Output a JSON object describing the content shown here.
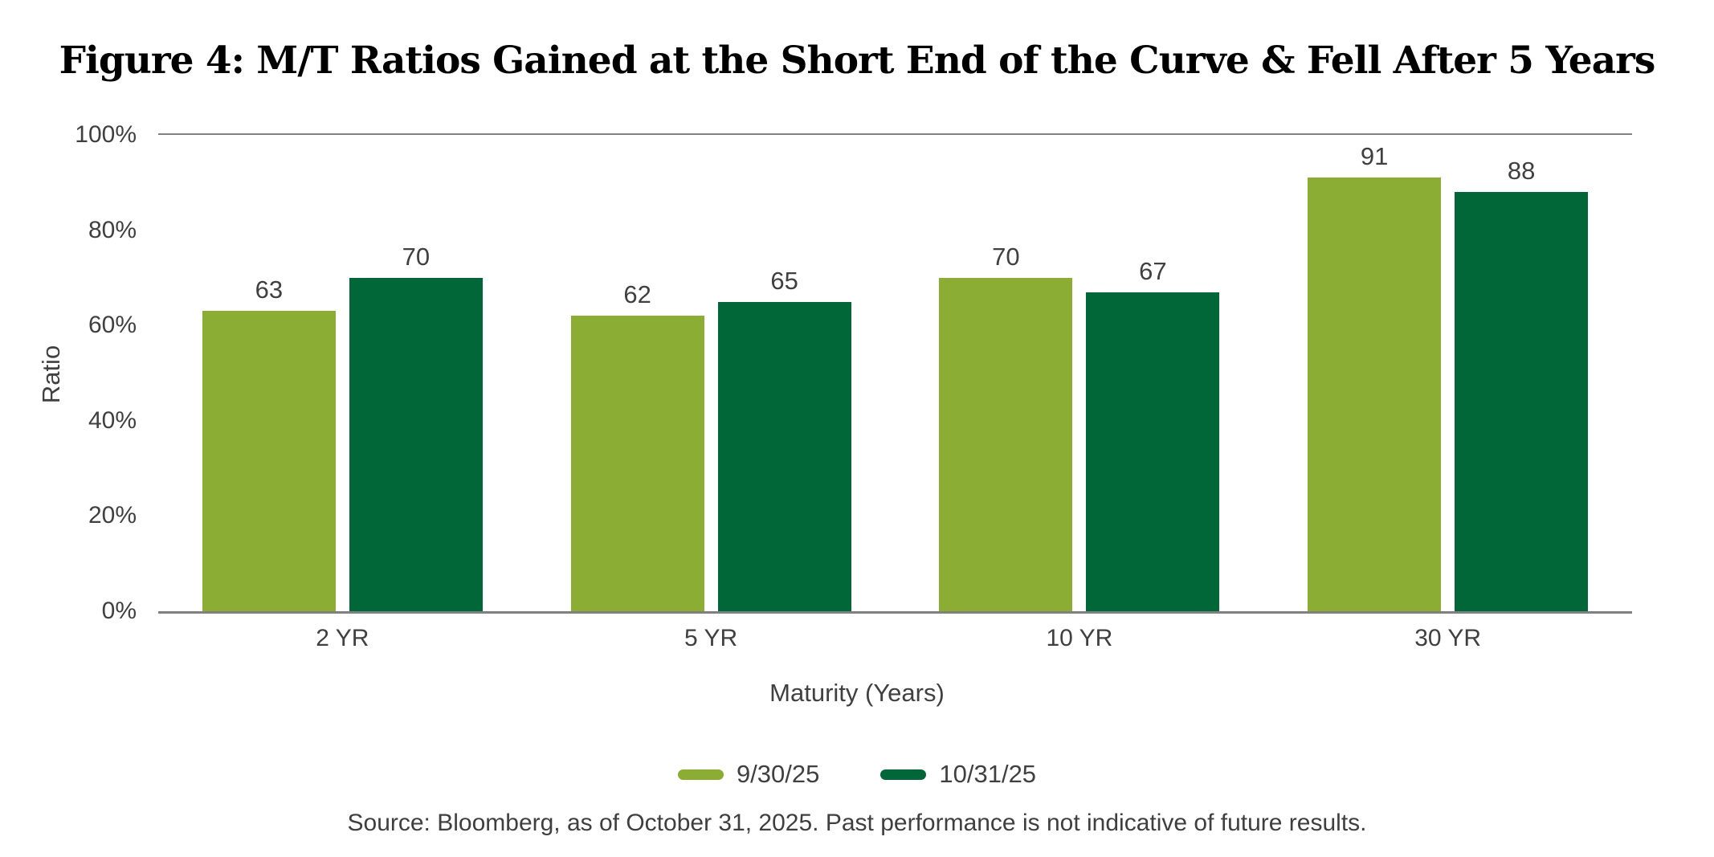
{
  "figure": {
    "title": "Figure 4: M/T Ratios Gained at the Short End of the Curve & Fell After 5 Years",
    "source_note": "Source: Bloomberg, as of October 31, 2025. Past performance is not indicative of future results."
  },
  "colors": {
    "series1": "#8BAD34",
    "series2": "#016638",
    "axis_line": "#808080",
    "label_text": "#404040",
    "title_text": "#000000"
  },
  "chart_data": {
    "type": "bar",
    "title": "Figure 4: M/T Ratios Gained at the Short End of the Curve & Fell After 5 Years",
    "categories": [
      "2 YR",
      "5 YR",
      "10 YR",
      "30 YR"
    ],
    "series": [
      {
        "name": "9/30/25",
        "color": "#8BAD34",
        "values": [
          63,
          62,
          70,
          91
        ]
      },
      {
        "name": "10/31/25",
        "color": "#016638",
        "values": [
          70,
          65,
          67,
          88
        ]
      }
    ],
    "xlabel": "Maturity (Years)",
    "ylabel": "Ratio",
    "ylim": [
      0,
      100
    ],
    "yticks": [
      "0%",
      "20%",
      "40%",
      "60%",
      "80%",
      "100%"
    ],
    "ytick_values": [
      0,
      20,
      40,
      60,
      80,
      100
    ],
    "grid": "horizontal line at 100% only",
    "legend_position": "bottom-center",
    "value_labels": true
  }
}
